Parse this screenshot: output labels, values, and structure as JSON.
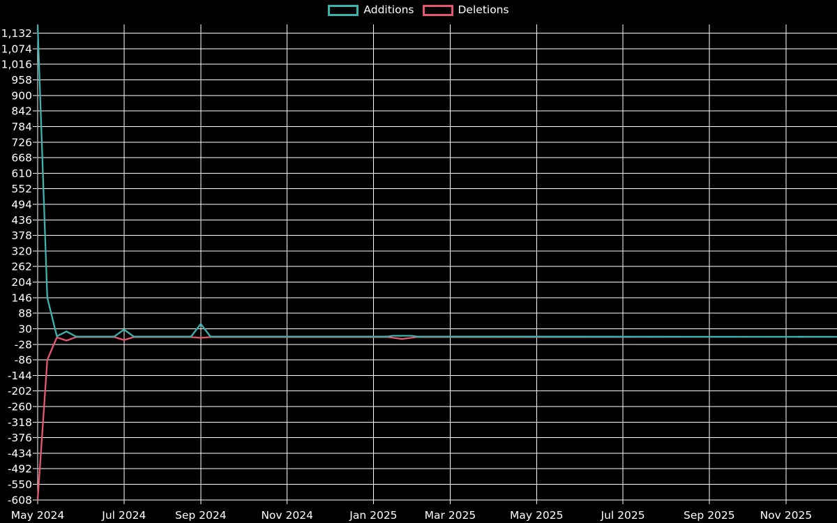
{
  "colors": {
    "background": "#000000",
    "grid": "#ffffff",
    "text": "#ffffff",
    "additions": "#3db3ae",
    "deletions": "#e65870"
  },
  "chart_data": {
    "type": "line",
    "title": "",
    "legend_position": "top-center",
    "x_axis": {
      "unit": "week_index",
      "ticks": [
        {
          "label": "May 2024",
          "week": 0
        },
        {
          "label": "Jul 2024",
          "week": 9
        },
        {
          "label": "Sep 2024",
          "week": 17
        },
        {
          "label": "Nov 2024",
          "week": 26
        },
        {
          "label": "Jan 2025",
          "week": 35
        },
        {
          "label": "Mar 2025",
          "week": 43
        },
        {
          "label": "May 2025",
          "week": 52
        },
        {
          "label": "Jul 2025",
          "week": 61
        },
        {
          "label": "Sep 2025",
          "week": 70
        },
        {
          "label": "Nov 2025",
          "week": 78
        }
      ],
      "range_weeks": [
        0,
        83.3
      ]
    },
    "y_axis": {
      "min": -608,
      "max": 1132,
      "tick_step": 58
    },
    "series": [
      {
        "name": "Additions",
        "color": "#3db3ae",
        "points": [
          [
            0,
            1162
          ],
          [
            1,
            146
          ],
          [
            2,
            2
          ],
          [
            3,
            20
          ],
          [
            4,
            1
          ],
          [
            8,
            1
          ],
          [
            9,
            27
          ],
          [
            10,
            1
          ],
          [
            16,
            1
          ],
          [
            17,
            48
          ],
          [
            18,
            1
          ],
          [
            36.5,
            1
          ],
          [
            37,
            4
          ],
          [
            39,
            4
          ],
          [
            39.5,
            1
          ],
          [
            83.3,
            0
          ]
        ]
      },
      {
        "name": "Deletions",
        "color": "#e65870",
        "points": [
          [
            0,
            -608
          ],
          [
            1,
            -86
          ],
          [
            2,
            -2
          ],
          [
            3,
            -14
          ],
          [
            4,
            -1
          ],
          [
            8,
            -1
          ],
          [
            9,
            -12
          ],
          [
            10,
            -1
          ],
          [
            16,
            -1
          ],
          [
            17,
            -4
          ],
          [
            18,
            -1
          ],
          [
            36.5,
            -1
          ],
          [
            38,
            -8
          ],
          [
            39.5,
            -1
          ],
          [
            83.3,
            0
          ]
        ]
      }
    ]
  }
}
